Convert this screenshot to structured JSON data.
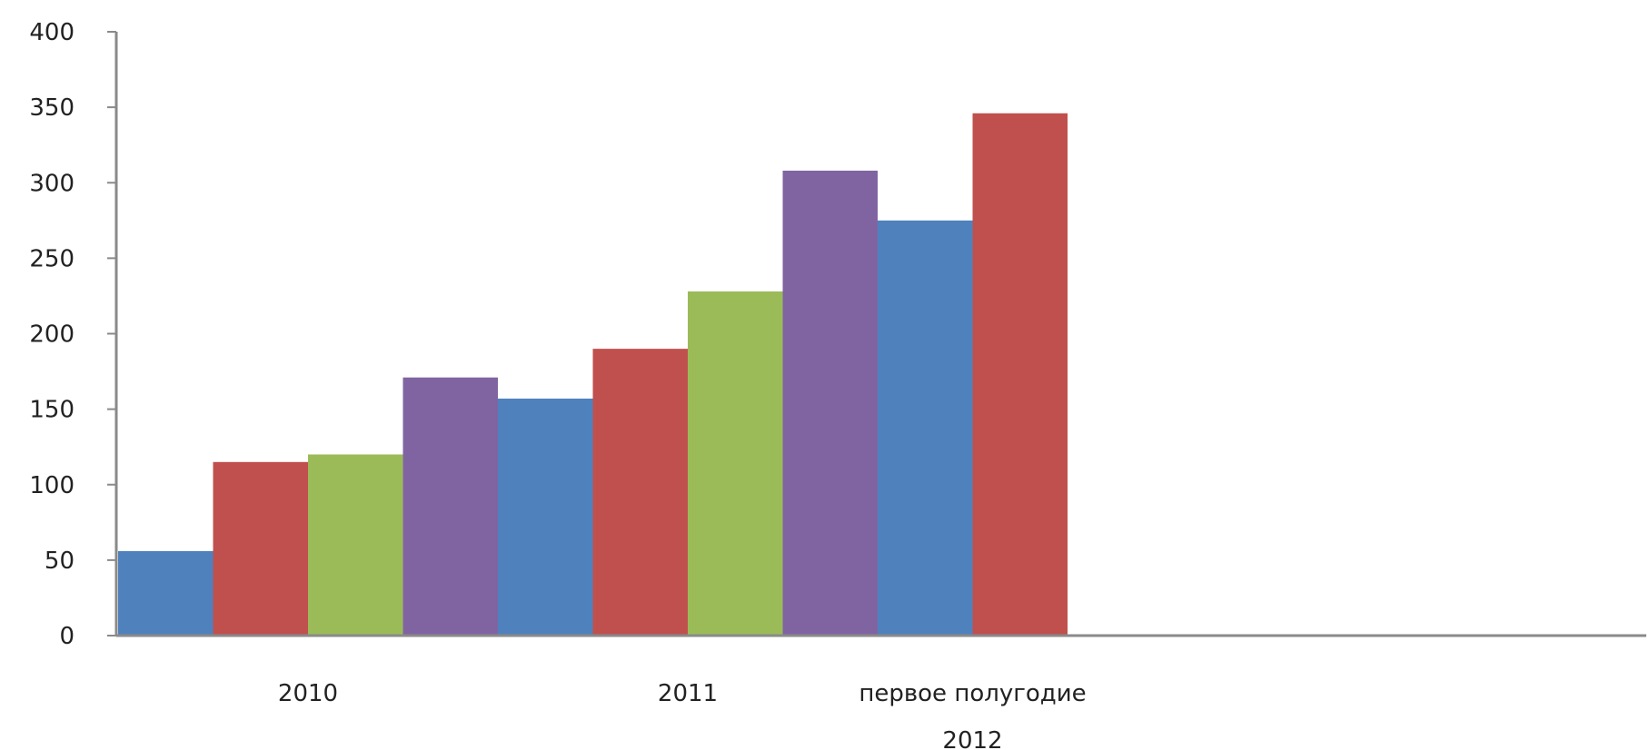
{
  "chart_data": {
    "type": "bar",
    "title": "",
    "xlabel": "",
    "ylabel": "",
    "ylim": [
      0,
      400
    ],
    "yticks": [
      0,
      50,
      100,
      150,
      200,
      250,
      300,
      350,
      400
    ],
    "grid": false,
    "legend": "none",
    "colors": [
      "#4f81bd",
      "#c0504d",
      "#9bbb59",
      "#8064a2"
    ],
    "bars": [
      56,
      115,
      120,
      171,
      157,
      190,
      228,
      308,
      275,
      346
    ],
    "categories": [
      {
        "lines": [
          "2010"
        ],
        "first_bar": 0,
        "last_bar": 3
      },
      {
        "lines": [
          "2011"
        ],
        "first_bar": 4,
        "last_bar": 7
      },
      {
        "lines": [
          "первое полугодие",
          "2012"
        ],
        "first_bar": 8,
        "last_bar": 9
      }
    ]
  }
}
